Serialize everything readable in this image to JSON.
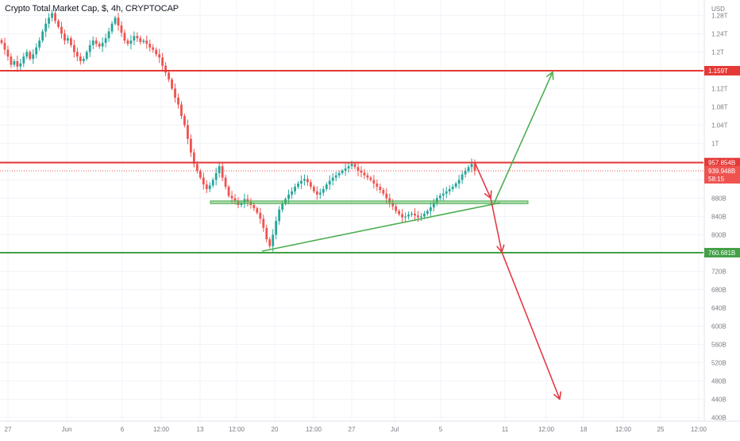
{
  "header": {
    "symbol_title": "Crypto Total Market Cap, $, 4h, CRYPTOCAP",
    "currency": "USD"
  },
  "colors": {
    "up": "#26a69a",
    "down": "#ef5350",
    "level_red": "#e53935",
    "level_green": "#43a047",
    "arrow_green": "#4caf50",
    "arrow_red": "#e53945",
    "zone_fill": "#4caf50",
    "grid": "#f0f3fa"
  },
  "price_axis": {
    "ticks": [
      "1.28T",
      "1.24T",
      "1.2T",
      "1.16T",
      "1.12T",
      "1.08T",
      "1.04T",
      "1T",
      "960B",
      "920B",
      "880B",
      "840B",
      "800B",
      "760B",
      "720B",
      "680B",
      "640B",
      "600B",
      "560B",
      "520B",
      "480B",
      "440B",
      "400B"
    ],
    "labels": [
      {
        "text": "1.159T",
        "kind": "level-red"
      },
      {
        "text": "957.854B",
        "kind": "level-red"
      },
      {
        "text": "939.948B",
        "kind": "last-price"
      },
      {
        "text": "58:15",
        "kind": "countdown"
      },
      {
        "text": "760.681B",
        "kind": "level-green"
      }
    ]
  },
  "time_axis": {
    "ticks": [
      "27",
      "Jun",
      "6",
      "12:00",
      "13",
      "12:00",
      "20",
      "12:00",
      "27",
      "Jul",
      "5",
      "11",
      "12:00",
      "18",
      "12:00",
      "25",
      "12:00"
    ]
  },
  "chart_data": {
    "type": "candlestick",
    "title": "Crypto Total Market Cap, $, 4h, CRYPTOCAP",
    "ylabel": "USD",
    "ylim": [
      400,
      1290
    ],
    "y_unit": "B",
    "horizontal_levels": [
      {
        "value": 1159,
        "label": "1.159T",
        "color": "red"
      },
      {
        "value": 957.854,
        "label": "957.854B",
        "color": "red"
      },
      {
        "value": 760.681,
        "label": "760.681B",
        "color": "green"
      }
    ],
    "support_zone": {
      "low": 868,
      "high": 874
    },
    "last_price": 939.948,
    "candles_close": [
      1220,
      1205,
      1190,
      1172,
      1180,
      1168,
      1175,
      1190,
      1200,
      1185,
      1195,
      1210,
      1225,
      1245,
      1262,
      1275,
      1285,
      1268,
      1255,
      1240,
      1225,
      1230,
      1215,
      1200,
      1190,
      1180,
      1185,
      1200,
      1215,
      1225,
      1218,
      1212,
      1220,
      1230,
      1245,
      1262,
      1275,
      1258,
      1242,
      1225,
      1218,
      1225,
      1235,
      1230,
      1222,
      1225,
      1218,
      1210,
      1205,
      1195,
      1188,
      1170,
      1155,
      1140,
      1120,
      1100,
      1085,
      1060,
      1040,
      1010,
      980,
      955,
      940,
      925,
      910,
      900,
      908,
      920,
      935,
      950,
      925,
      905,
      885,
      880,
      875,
      865,
      870,
      878,
      872,
      865,
      858,
      848,
      835,
      815,
      790,
      775,
      800,
      830,
      855,
      868,
      878,
      888,
      895,
      905,
      912,
      918,
      922,
      915,
      905,
      895,
      888,
      892,
      900,
      910,
      918,
      925,
      930,
      935,
      940,
      945,
      950,
      955,
      948,
      940,
      936,
      930,
      925,
      920,
      912,
      905,
      898,
      890,
      880,
      870,
      862,
      852,
      845,
      838,
      840,
      844,
      846,
      842,
      838,
      840,
      846,
      852,
      860,
      870,
      880,
      886,
      890,
      895,
      900,
      905,
      912,
      920,
      932,
      940,
      948,
      955,
      939.948
    ],
    "annotations": [
      {
        "type": "trendline",
        "from": [
          1,
          764
        ],
        "to": [
          2,
          870
        ]
      },
      {
        "type": "arrow",
        "color": "green",
        "from": [
          3,
          868
        ],
        "to": [
          4,
          1156
        ]
      },
      {
        "type": "arrow",
        "color": "red",
        "from": [
          5,
          958
        ],
        "to": [
          6,
          880
        ]
      },
      {
        "type": "arrow",
        "color": "red",
        "from": [
          6,
          880
        ],
        "to": [
          7,
          762
        ]
      },
      {
        "type": "arrow",
        "color": "red",
        "from": [
          7,
          762
        ],
        "to": [
          8,
          440
        ]
      }
    ]
  }
}
